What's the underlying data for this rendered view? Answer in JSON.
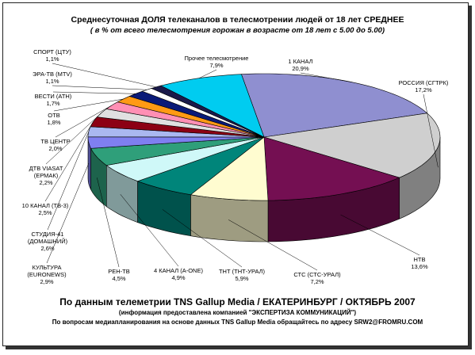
{
  "titles": {
    "line1": "Среднесуточная ДОЛЯ телеканалов в телесмотрении людей от 18 лет СРЕДНЕЕ",
    "line2": "( в % от всего телесмотрения горожан в возрасте от 18 лет с 5.00 до 5.00)"
  },
  "footer": {
    "line1": "По данным телеметрии TNS Gallup Media / ЕКАТЕРИНБУРГ / ОКТЯБРЬ 2007",
    "line2": "(информация предоставлена компанией \"ЭКСПЕРТИЗА КОММУНИКАЦИЙ\")",
    "line3": "По вопросам медиапланирования на основе данных TNS Gallup Media обращайтесь по адресу SRW2@FROMRU.COM"
  },
  "chart_data": {
    "type": "pie",
    "style": "3d-pie",
    "slices": [
      {
        "label": "1 КАНАЛ",
        "value": 20.9,
        "value_label": "20,9%",
        "color": "#8f8fd0"
      },
      {
        "label": "РОССИЯ  (СГТРК)",
        "value": 17.2,
        "value_label": "17,2%",
        "color": "#cfcfcf"
      },
      {
        "label": "НТВ",
        "value": 13.6,
        "value_label": "13,6%",
        "color": "#740f52"
      },
      {
        "label": "СТС (СТС-УРАЛ)",
        "value": 7.2,
        "value_label": "7,2%",
        "color": "#fffcd0"
      },
      {
        "label": "ТНТ (ТНТ-УРАЛ)",
        "value": 5.9,
        "value_label": "5,9%",
        "color": "#00857a"
      },
      {
        "label": "4 КАНАЛ (А-ONE)",
        "value": 4.9,
        "value_label": "4,9%",
        "color": "#cff8f8"
      },
      {
        "label": "РЕН-ТВ",
        "value": 4.5,
        "value_label": "4,5%",
        "color": "#2f9f7a"
      },
      {
        "label": "КУЛЬТУРА\n(EURONEWS)",
        "value": 2.9,
        "value_label": "2,9%",
        "color": "#7f7ff0"
      },
      {
        "label": "СТУДИЯ-41\n(ДОМАШНИЙ)",
        "value": 2.6,
        "value_label": "2,6%",
        "color": "#aab8f0"
      },
      {
        "label": "10 КАНАЛ (ТВ-3)",
        "value": 2.5,
        "value_label": "2,5%",
        "color": "#8c0014"
      },
      {
        "label": "ДТВ VIASAT\n(ЕРМАК)",
        "value": 2.2,
        "value_label": "2,2%",
        "color": "#e0e0e0"
      },
      {
        "label": "ТВ ЦЕНТР",
        "value": 2.0,
        "value_label": "2,0%",
        "color": "#ff8fb4"
      },
      {
        "label": "ОТВ",
        "value": 1.8,
        "value_label": "1,8%",
        "color": "#ff9a14"
      },
      {
        "label": "ВЕСТИ (АТН)",
        "value": 1.7,
        "value_label": "1,7%",
        "color": "#0a1a78"
      },
      {
        "label": "ЭРА-ТВ (MTV)",
        "value": 1.1,
        "value_label": "1,1%",
        "color": "#ffffff"
      },
      {
        "label": "СПОРТ (ЦТУ)",
        "value": 1.1,
        "value_label": "1,1%",
        "color": "#1a1a4a"
      },
      {
        "label": "Прочее телесмотрение",
        "value": 7.9,
        "value_label": "7,9%",
        "color": "#00ccf0"
      }
    ]
  }
}
